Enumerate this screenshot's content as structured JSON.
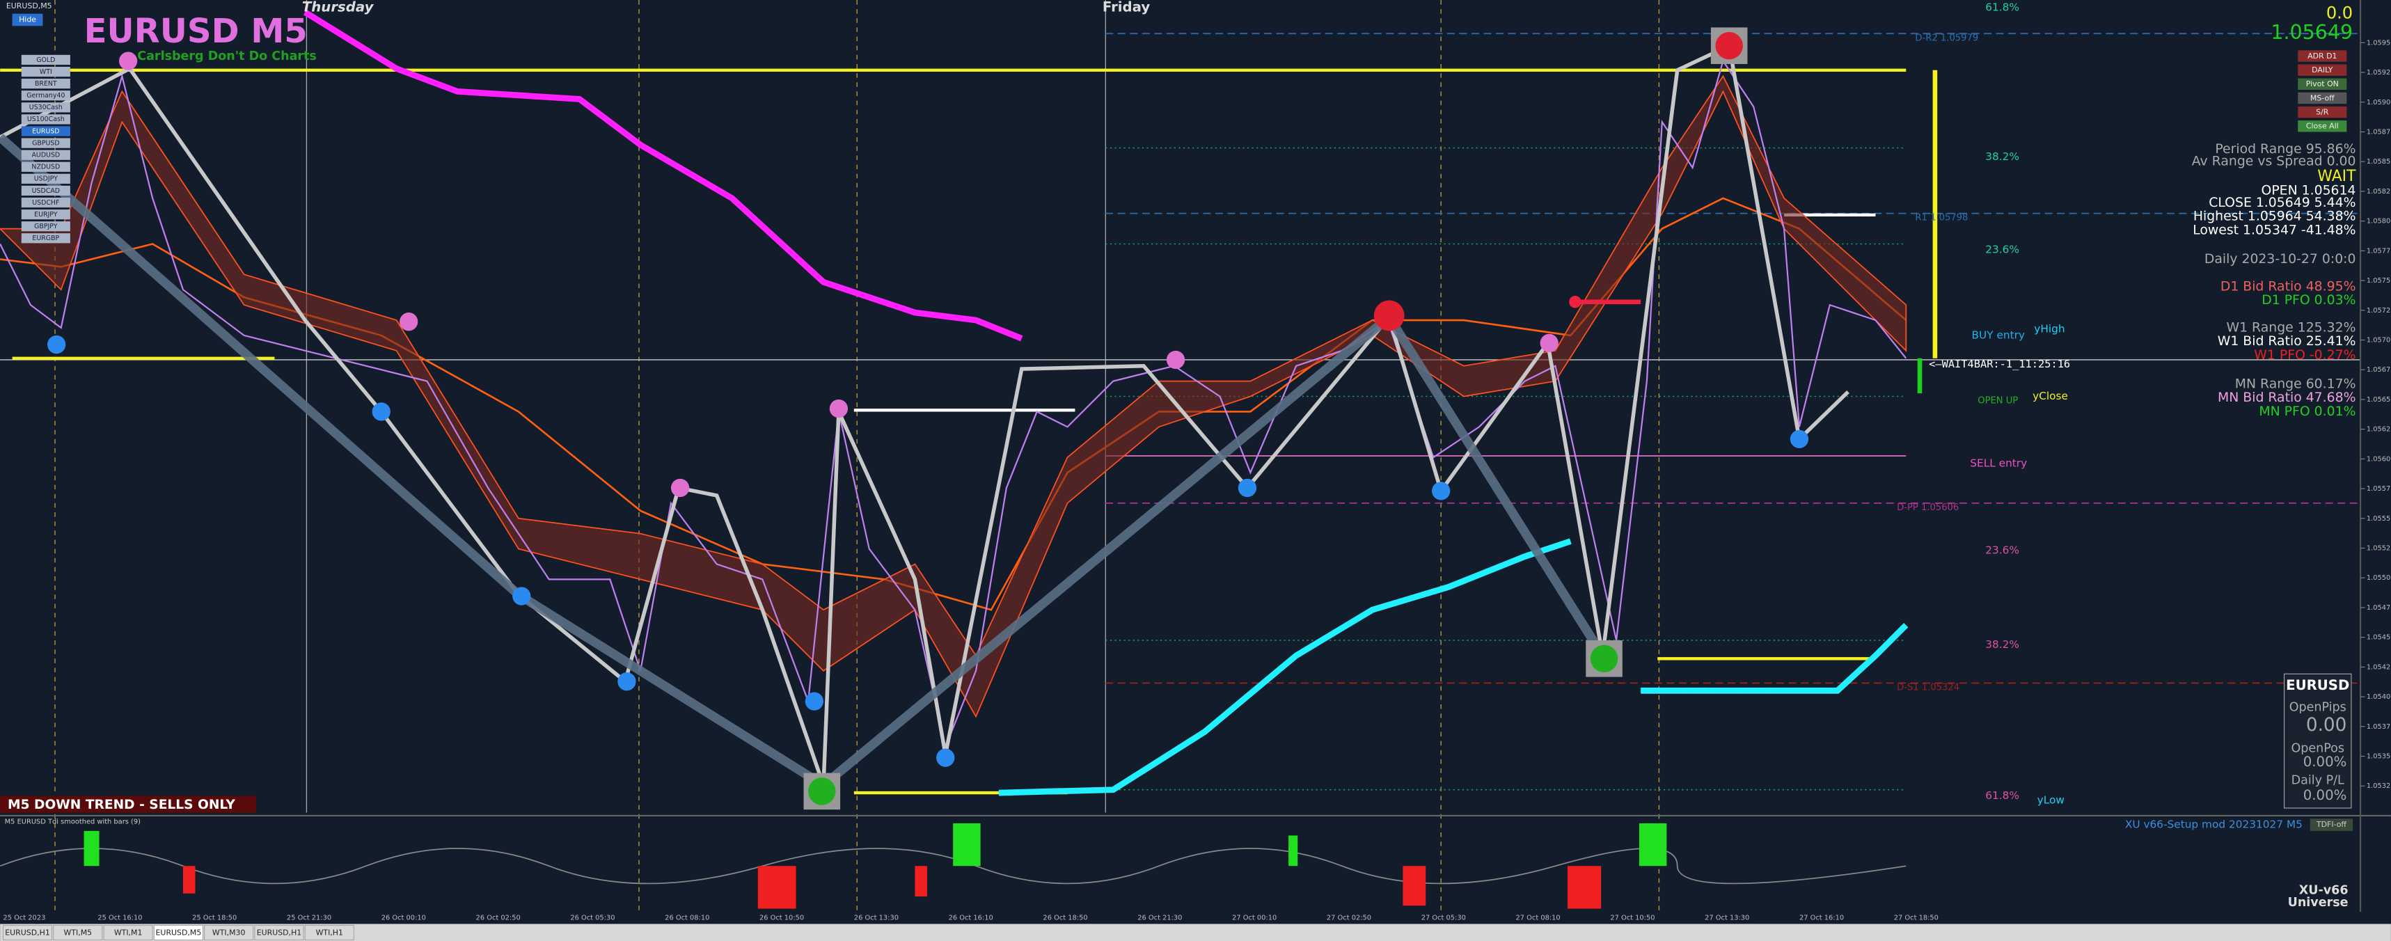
{
  "window": {
    "title": "EURUSD,M5",
    "hide_button": "Hide"
  },
  "header": {
    "title": "EURUSD M5",
    "subtitle": "Carlsberg Don't Do Charts"
  },
  "symbols": [
    "GOLD",
    "WTI",
    "BRENT",
    "Germany40",
    "US30Cash",
    "US100Cash",
    "EURUSD",
    "GBPUSD",
    "AUDUSD",
    "NZDUSD",
    "USDJPY",
    "USDCAD",
    "USDCHF",
    "EURJPY",
    "GBPJPY",
    "EURGBP"
  ],
  "days": [
    "Thursday",
    "Friday"
  ],
  "fib_labels": [
    "61.8%",
    "38.2%",
    "23.6%",
    "23.6%",
    "38.2%",
    "61.8%"
  ],
  "pivots": [
    "D-R2 1.05979",
    "R1 1.05798",
    "D-PP 1.05606",
    "D-S1 1.05324"
  ],
  "chart_labels": {
    "buy_entry": "BUY entry",
    "y_high": "yHigh",
    "open_up": "OPEN UP",
    "y_close": "yClose",
    "sell_entry": "SELL entry",
    "y_low": "yLow",
    "wait_bar": "<—WAIT4BAR:-1_11:25:16"
  },
  "trend_banner": "M5  DOWN TREND - SELLS ONLY",
  "panel": {
    "pips": "0.0",
    "price": "1.05649",
    "buttons": [
      "ADR D1",
      "DAILY",
      "Pivot ON",
      "MS-off",
      "S/R",
      "Close All"
    ],
    "stats": [
      "Period Range 95.86%",
      "Av Range vs Spread 0.00",
      "WAIT",
      "OPEN 1.05614",
      "CLOSE 1.05649 5.44%",
      "Highest 1.05964 54.38%",
      "Lowest 1.05347 -41.48%",
      "Daily 2023-10-27 0:0:0",
      "D1 Bid Ratio 48.95%",
      "D1 PFO 0.03%",
      "W1 Range 125.32%",
      "W1 Bid Ratio 25.41%",
      "W1 PFO -0.27%",
      "MN Range 60.17%",
      "MN Bid Ratio 47.68%",
      "MN PFO 0.01%"
    ]
  },
  "account_box": {
    "symbol": "EURUSD",
    "open_pips_label": "OpenPips",
    "open_pips": "0.00",
    "open_pos_label": "OpenPos",
    "open_pos": "0.00%",
    "daily_pl_label": "Daily P/L",
    "daily_pl": "0.00%"
  },
  "indicator": {
    "title": "M5 EURUSD Tdi smoothed with bars (9)",
    "setup": "XU v66-Setup mod 20231027 M5",
    "tdfi": "TDFI-off",
    "brand_line1": "XU-v66",
    "brand_line2": "Universe"
  },
  "price_axis": [
    "1.05950",
    "1.05925",
    "1.05900",
    "1.05875",
    "1.05850",
    "1.05825",
    "1.05800",
    "1.05775",
    "1.05750",
    "1.05725",
    "1.05700",
    "1.05675",
    "1.05650",
    "1.05625",
    "1.05600",
    "1.05575",
    "1.05550",
    "1.05525",
    "1.05500",
    "1.05475",
    "1.05450",
    "1.05425",
    "1.05400",
    "1.05375",
    "1.05350",
    "1.05325"
  ],
  "time_axis": [
    "25 Oct 2023",
    "25 Oct 16:10",
    "25 Oct 18:50",
    "25 Oct 21:30",
    "26 Oct 00:10",
    "26 Oct 02:50",
    "26 Oct 05:30",
    "26 Oct 08:10",
    "26 Oct 10:50",
    "26 Oct 13:30",
    "26 Oct 16:10",
    "26 Oct 18:50",
    "26 Oct 21:30",
    "27 Oct 00:10",
    "27 Oct 02:50",
    "27 Oct 05:30",
    "27 Oct 08:10",
    "27 Oct 10:50",
    "27 Oct 13:30",
    "27 Oct 16:10",
    "27 Oct 18:50"
  ],
  "tabs": [
    "EURUSD,H1",
    "WTI,M5",
    "WTI,M1",
    "EURUSD,M5",
    "WTI,M30",
    "EURUSD,H1",
    "WTI,H1"
  ]
}
